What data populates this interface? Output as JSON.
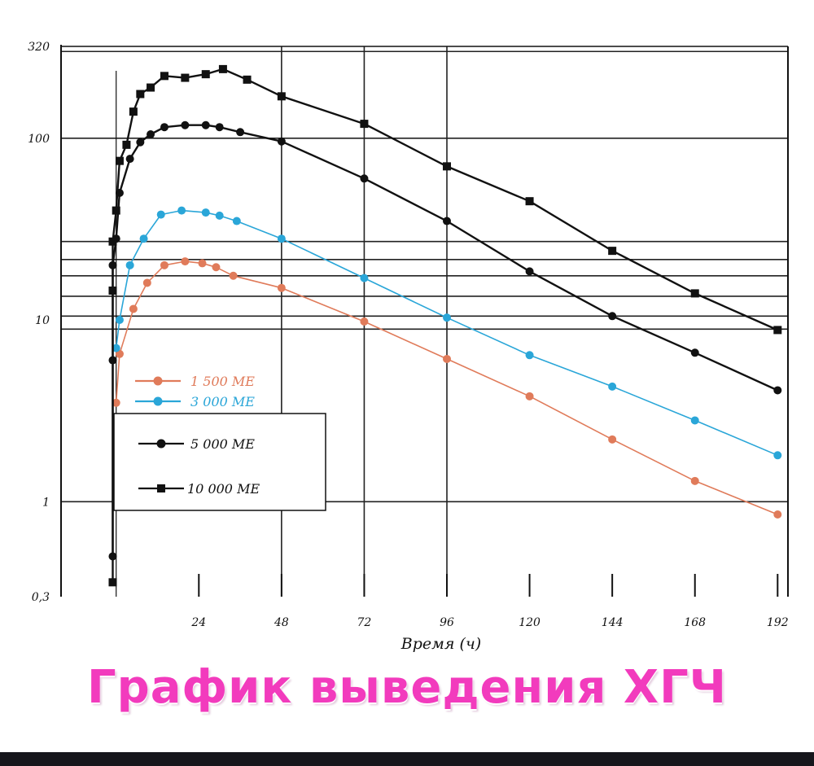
{
  "chart_data": {
    "type": "line",
    "title": "График выведения ХГЧ",
    "xlabel": "Время (ч)",
    "ylabel": "",
    "y_scale": "log",
    "xlim": [
      -16,
      195
    ],
    "ylim": [
      0.3,
      320
    ],
    "x_ticks": [
      24,
      48,
      72,
      96,
      120,
      144,
      168,
      192
    ],
    "y_ticks": [
      {
        "value": 0.3,
        "label": "0,3"
      },
      {
        "value": 1,
        "label": "1"
      },
      {
        "value": 10,
        "label": "10"
      },
      {
        "value": 100,
        "label": "100"
      },
      {
        "value": 320,
        "label": "320"
      }
    ],
    "grid": {
      "vertical_x": [
        48,
        72,
        96
      ],
      "horizontal_y": [
        1,
        8.9,
        10.5,
        13.5,
        17.5,
        21.5,
        27,
        100,
        300
      ]
    },
    "legend_position": "lower-left",
    "series": [
      {
        "name": "1 500 МЕ",
        "color": "#e07b5a",
        "marker": "circle",
        "x": [
          0,
          1,
          5,
          9,
          14,
          20,
          25,
          29,
          34,
          48,
          72,
          96,
          120,
          144,
          168,
          192
        ],
        "y": [
          3.5,
          6.5,
          11.5,
          16,
          20,
          21,
          20.5,
          19.5,
          17.5,
          15,
          9.8,
          6.1,
          3.8,
          2.2,
          1.3,
          0.85
        ]
      },
      {
        "name": "3 000 МЕ",
        "color": "#2aa6d8",
        "marker": "circle",
        "x": [
          0,
          1,
          4,
          8,
          13,
          19,
          26,
          30,
          35,
          48,
          72,
          96,
          120,
          144,
          168,
          192
        ],
        "y": [
          7,
          10,
          20,
          28,
          38,
          40,
          39,
          37.5,
          35,
          28,
          17,
          10.3,
          6.4,
          4.3,
          2.8,
          1.8
        ]
      },
      {
        "name": "5 000 МЕ",
        "color": "#111111",
        "marker": "circle",
        "x": [
          -1,
          -1,
          -1,
          0,
          1,
          4,
          7,
          10,
          14,
          20,
          26,
          30,
          36,
          48,
          72,
          96,
          120,
          144,
          168,
          192
        ],
        "y": [
          0.5,
          6,
          20,
          28,
          50,
          77,
          95,
          105,
          115,
          118,
          118,
          115,
          108,
          96,
          60,
          35,
          18.5,
          10.5,
          6.6,
          4.1
        ]
      },
      {
        "name": "10 000 МЕ",
        "color": "#111111",
        "marker": "square",
        "x": [
          -1,
          -1,
          -1,
          0,
          1,
          3,
          5,
          7,
          10,
          14,
          20,
          26,
          31,
          38,
          48,
          72,
          96,
          120,
          144,
          168,
          192
        ],
        "y": [
          0.36,
          14.5,
          27,
          40,
          75,
          92,
          140,
          175,
          190,
          220,
          215,
          225,
          240,
          210,
          170,
          120,
          70,
          45,
          24,
          14,
          8.8
        ]
      }
    ]
  }
}
